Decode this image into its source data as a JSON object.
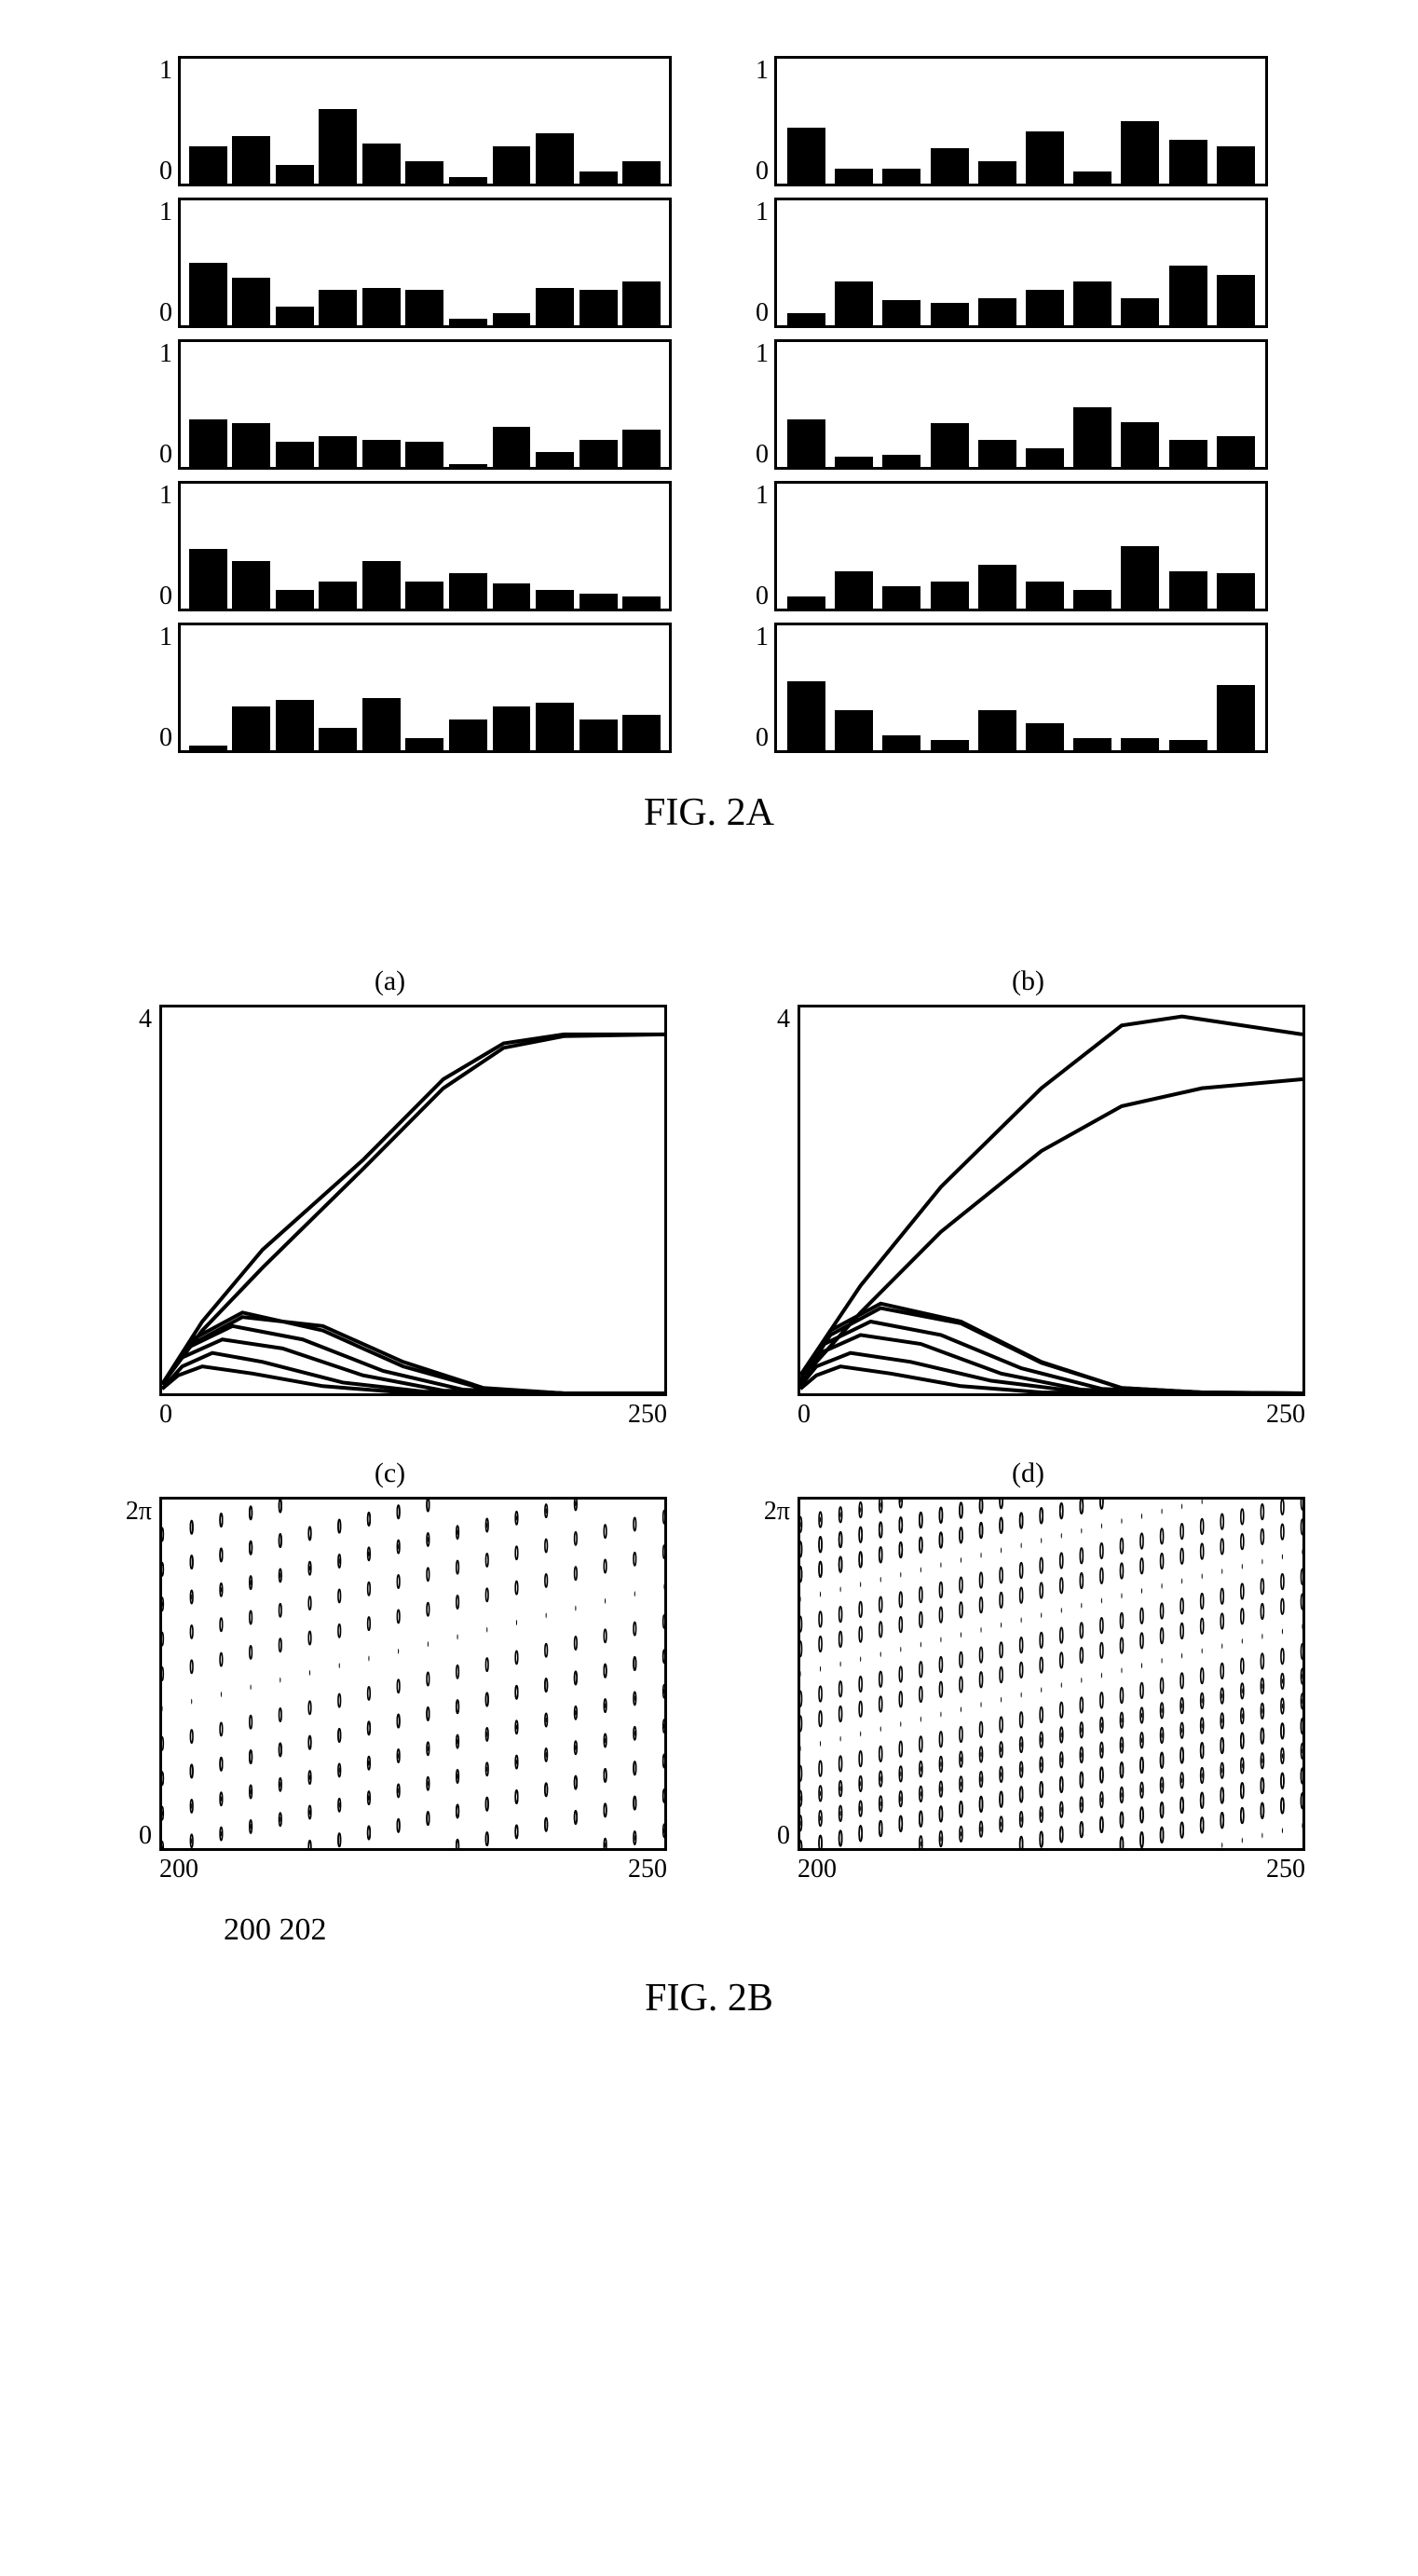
{
  "fig2a": {
    "caption": "FIG. 2A",
    "ylim": [
      0,
      1
    ],
    "yticks": [
      "1",
      "0"
    ],
    "bar_color": "#000000",
    "border_color": "#000000",
    "border_width": 3,
    "n_bars": 10,
    "panels_left": [
      [
        0.3,
        0.38,
        0.15,
        0.6,
        0.32,
        0.18,
        0.05,
        0.3,
        0.4,
        0.1,
        0.18
      ],
      [
        0.5,
        0.38,
        0.15,
        0.28,
        0.3,
        0.28,
        0.05,
        0.1,
        0.3,
        0.28,
        0.35
      ],
      [
        0.38,
        0.35,
        0.2,
        0.25,
        0.22,
        0.2,
        0.02,
        0.32,
        0.12,
        0.22,
        0.3
      ],
      [
        0.48,
        0.38,
        0.15,
        0.22,
        0.38,
        0.22,
        0.28,
        0.2,
        0.15,
        0.12,
        0.1
      ],
      [
        0.04,
        0.35,
        0.4,
        0.18,
        0.42,
        0.1,
        0.25,
        0.35,
        0.38,
        0.25,
        0.28
      ]
    ],
    "panels_right": [
      [
        0.45,
        0.12,
        0.12,
        0.28,
        0.18,
        0.42,
        0.1,
        0.5,
        0.35,
        0.3
      ],
      [
        0.1,
        0.35,
        0.2,
        0.18,
        0.22,
        0.28,
        0.35,
        0.22,
        0.48,
        0.4
      ],
      [
        0.38,
        0.08,
        0.1,
        0.35,
        0.22,
        0.15,
        0.48,
        0.36,
        0.22,
        0.25
      ],
      [
        0.1,
        0.3,
        0.18,
        0.22,
        0.35,
        0.22,
        0.15,
        0.5,
        0.3,
        0.28
      ],
      [
        0.55,
        0.32,
        0.12,
        0.08,
        0.32,
        0.22,
        0.1,
        0.1,
        0.08,
        0.52
      ]
    ]
  },
  "fig2b": {
    "caption": "FIG. 2B",
    "annotation": "200  202",
    "subplot_titles": {
      "a": "(a)",
      "b": "(b)",
      "c": "(c)",
      "d": "(d)"
    },
    "line_plots": {
      "xlim": [
        0,
        250
      ],
      "xticks": [
        "0",
        "250"
      ],
      "ylim": [
        0,
        4.3
      ],
      "yticks": [
        "4",
        ""
      ],
      "line_color": "#000000",
      "line_width": 4,
      "a_curves": [
        [
          [
            0,
            0.1
          ],
          [
            20,
            0.8
          ],
          [
            50,
            1.6
          ],
          [
            100,
            2.6
          ],
          [
            140,
            3.5
          ],
          [
            170,
            3.9
          ],
          [
            200,
            4.0
          ],
          [
            250,
            4.0
          ]
        ],
        [
          [
            0,
            0.1
          ],
          [
            20,
            0.7
          ],
          [
            50,
            1.4
          ],
          [
            100,
            2.5
          ],
          [
            140,
            3.4
          ],
          [
            170,
            3.85
          ],
          [
            200,
            3.98
          ],
          [
            250,
            4.0
          ]
        ],
        [
          [
            0,
            0.1
          ],
          [
            15,
            0.6
          ],
          [
            40,
            0.9
          ],
          [
            80,
            0.7
          ],
          [
            120,
            0.3
          ],
          [
            160,
            0.05
          ],
          [
            200,
            0
          ],
          [
            250,
            0
          ]
        ],
        [
          [
            0,
            0.1
          ],
          [
            15,
            0.55
          ],
          [
            40,
            0.85
          ],
          [
            80,
            0.75
          ],
          [
            120,
            0.35
          ],
          [
            160,
            0.06
          ],
          [
            200,
            0
          ],
          [
            250,
            0
          ]
        ],
        [
          [
            0,
            0.1
          ],
          [
            12,
            0.5
          ],
          [
            35,
            0.75
          ],
          [
            70,
            0.6
          ],
          [
            110,
            0.25
          ],
          [
            150,
            0.04
          ],
          [
            200,
            0
          ],
          [
            250,
            0
          ]
        ],
        [
          [
            0,
            0.1
          ],
          [
            10,
            0.4
          ],
          [
            30,
            0.6
          ],
          [
            60,
            0.5
          ],
          [
            100,
            0.2
          ],
          [
            140,
            0.03
          ],
          [
            200,
            0
          ],
          [
            250,
            0
          ]
        ],
        [
          [
            0,
            0.05
          ],
          [
            10,
            0.3
          ],
          [
            25,
            0.45
          ],
          [
            50,
            0.35
          ],
          [
            90,
            0.12
          ],
          [
            130,
            0.02
          ],
          [
            200,
            0
          ],
          [
            250,
            0
          ]
        ],
        [
          [
            0,
            0.05
          ],
          [
            8,
            0.2
          ],
          [
            20,
            0.3
          ],
          [
            45,
            0.22
          ],
          [
            80,
            0.08
          ],
          [
            120,
            0.01
          ],
          [
            200,
            0
          ],
          [
            250,
            0
          ]
        ]
      ],
      "b_curves": [
        [
          [
            0,
            0.2
          ],
          [
            30,
            1.2
          ],
          [
            70,
            2.3
          ],
          [
            120,
            3.4
          ],
          [
            160,
            4.1
          ],
          [
            190,
            4.2
          ],
          [
            220,
            4.1
          ],
          [
            250,
            4.0
          ]
        ],
        [
          [
            0,
            0.15
          ],
          [
            30,
            0.9
          ],
          [
            70,
            1.8
          ],
          [
            120,
            2.7
          ],
          [
            160,
            3.2
          ],
          [
            200,
            3.4
          ],
          [
            250,
            3.5
          ]
        ],
        [
          [
            0,
            0.15
          ],
          [
            15,
            0.7
          ],
          [
            40,
            1.0
          ],
          [
            80,
            0.8
          ],
          [
            120,
            0.35
          ],
          [
            160,
            0.06
          ],
          [
            200,
            0.01
          ],
          [
            250,
            0
          ]
        ],
        [
          [
            0,
            0.15
          ],
          [
            15,
            0.65
          ],
          [
            40,
            0.95
          ],
          [
            80,
            0.78
          ],
          [
            120,
            0.34
          ],
          [
            160,
            0.06
          ],
          [
            200,
            0.01
          ],
          [
            250,
            0
          ]
        ],
        [
          [
            0,
            0.12
          ],
          [
            12,
            0.55
          ],
          [
            35,
            0.8
          ],
          [
            70,
            0.65
          ],
          [
            110,
            0.28
          ],
          [
            150,
            0.05
          ],
          [
            200,
            0
          ],
          [
            250,
            0
          ]
        ],
        [
          [
            0,
            0.1
          ],
          [
            10,
            0.45
          ],
          [
            30,
            0.65
          ],
          [
            60,
            0.55
          ],
          [
            100,
            0.22
          ],
          [
            140,
            0.04
          ],
          [
            200,
            0
          ],
          [
            250,
            0
          ]
        ],
        [
          [
            0,
            0.08
          ],
          [
            8,
            0.3
          ],
          [
            25,
            0.45
          ],
          [
            55,
            0.35
          ],
          [
            95,
            0.14
          ],
          [
            135,
            0.03
          ],
          [
            200,
            0
          ],
          [
            250,
            0
          ]
        ],
        [
          [
            0,
            0.05
          ],
          [
            8,
            0.2
          ],
          [
            20,
            0.3
          ],
          [
            45,
            0.22
          ],
          [
            80,
            0.08
          ],
          [
            120,
            0.01
          ],
          [
            200,
            0
          ],
          [
            250,
            0
          ]
        ]
      ]
    },
    "scatter_plots": {
      "xlim": [
        200,
        250
      ],
      "xticks": [
        "200",
        "250"
      ],
      "ylim": [
        0,
        6.283
      ],
      "yticks": [
        "2π",
        "0"
      ],
      "marker_open_color": "#000000",
      "marker_fill_color": "#000000",
      "c": {
        "n_stripes": 10,
        "slope": 0.35,
        "density": 18,
        "open_big": 6,
        "dot_small": 2
      },
      "d": {
        "n_stripes": 14,
        "slope": 0.35,
        "density": 26,
        "open_big": 7,
        "dot_small": 2
      }
    }
  }
}
